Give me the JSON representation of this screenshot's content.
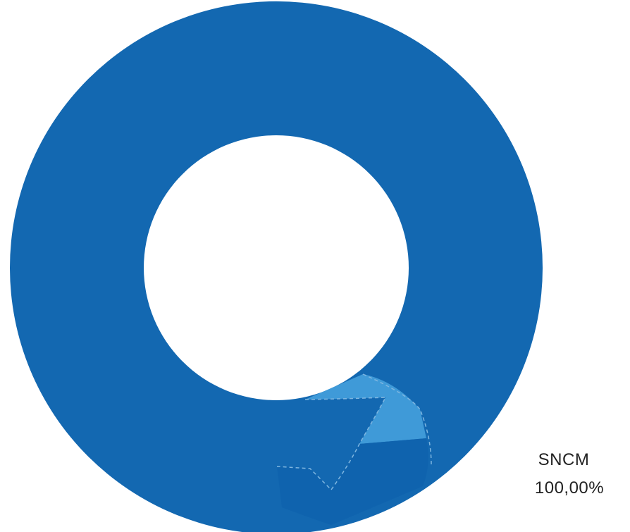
{
  "chart_data": {
    "type": "pie",
    "donut": true,
    "slices": [
      {
        "label": "SNCM",
        "value": 100.0,
        "value_label": "100,00%",
        "color": "#1368b1"
      }
    ],
    "highlight_color": "#3f9ad8",
    "title": "",
    "legend": "none"
  }
}
